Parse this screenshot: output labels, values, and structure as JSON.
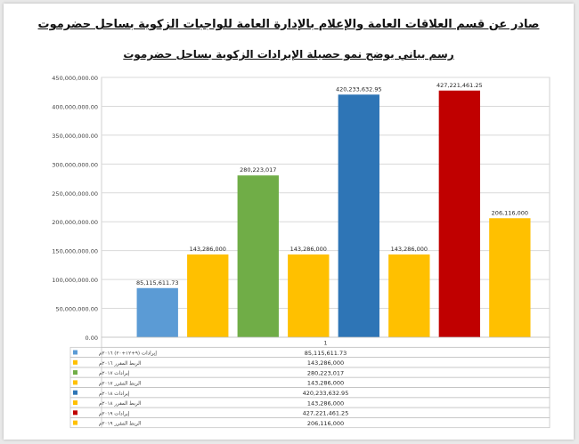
{
  "header": {
    "line1": "صادر عن قسم العلاقات العامة والإعلام بالإدارة العامة للواجبات الزكوية بساحل حضرموت",
    "line2": "رسم بياني يوضح نمو حصيلة الإيرادات الزكوية بساحل حضرموت"
  },
  "chart_data": {
    "type": "bar",
    "title": "",
    "xlabel": "",
    "ylabel": "",
    "categories": [
      "1"
    ],
    "ylim": [
      0,
      450000000
    ],
    "yticks": [
      0,
      50000000,
      100000000,
      150000000,
      200000000,
      250000000,
      300000000,
      350000000,
      400000000,
      450000000
    ],
    "ytick_labels": [
      "0.00",
      "50,000,000.00",
      "100,000,000.00",
      "150,000,000.00",
      "200,000,000.00",
      "250,000,000.00",
      "300,000,000.00",
      "350,000,000.00",
      "400,000,000.00",
      "450,000,000.00"
    ],
    "grid": true,
    "legend": "table below chart",
    "series": [
      {
        "name": "إيرادات (٩+١٢+٢٠) ٢٠١٦م",
        "value": 85115611.73,
        "label": "85,115,611.73",
        "color": "#5b9bd5"
      },
      {
        "name": "الربط المقرر ٢٠١٦م",
        "value": 143286000,
        "label": "143,286,000",
        "color": "#ffc000"
      },
      {
        "name": "إيرادات ٢٠١٧م",
        "value": 280223017,
        "label": "280,223,017",
        "color": "#70ad47"
      },
      {
        "name": "الربط المقرر ٢٠١٧م",
        "value": 143286000,
        "label": "143,286,000",
        "color": "#ffc000"
      },
      {
        "name": "إيرادات ٢٠١٨م",
        "value": 420233632.95,
        "label": "420,233,632.95",
        "color": "#2e75b6"
      },
      {
        "name": "الربط المقرر ٢٠١٨م",
        "value": 143286000,
        "label": "143,286,000",
        "color": "#ffc000"
      },
      {
        "name": "إيرادات ٢٠١٩م",
        "value": 427221461.25,
        "label": "427,221,461.25",
        "color": "#c00000"
      },
      {
        "name": "الربط المقرر ٢٠١٩م",
        "value": 206116000,
        "label": "206,116,000",
        "color": "#ffc000"
      }
    ]
  }
}
